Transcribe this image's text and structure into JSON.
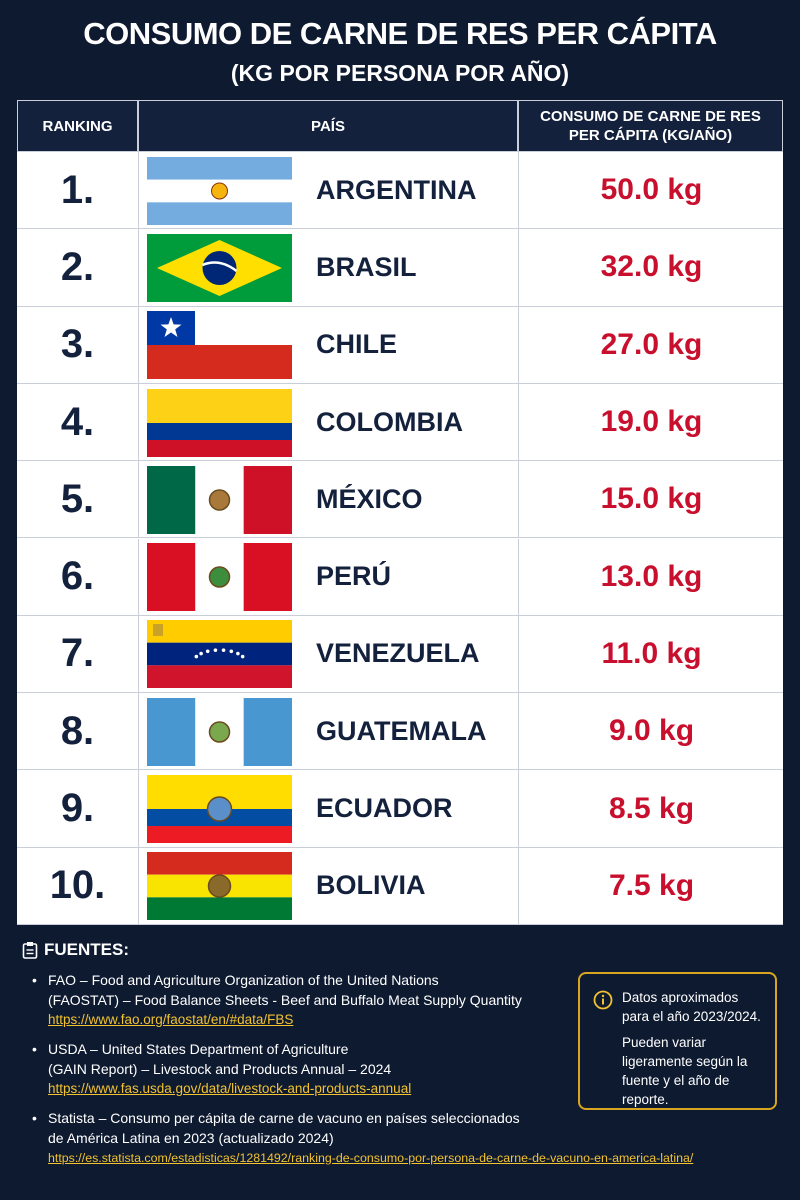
{
  "header": {
    "title": "CONSUMO DE CARNE DE RES PER CÁPITA",
    "subtitle": "(KG POR PERSONA POR AÑO)"
  },
  "table": {
    "columns": [
      "RANKING",
      "PAÍS",
      "CONSUMO DE CARNE DE RES PER CÁPITA (KG/AÑO)"
    ],
    "rows": [
      [
        "1.",
        "ARGENTINA",
        "50.0 kg"
      ],
      [
        "2.",
        "BRASIL",
        "32.0 kg"
      ],
      [
        "3.",
        "CHILE",
        "27.0 kg"
      ],
      [
        "4.",
        "COLOMBIA",
        "19.0 kg"
      ],
      [
        "5.",
        "MÉXICO",
        "15.0 kg"
      ],
      [
        "6.",
        "PERÚ",
        "13.0 kg"
      ],
      [
        "7.",
        "VENEZUELA",
        "11.0 kg"
      ],
      [
        "8.",
        "GUATEMALA",
        "9.0 kg"
      ],
      [
        "9.",
        "ECUADOR",
        "8.5 kg"
      ],
      [
        "10.",
        "BOLIVIA",
        "7.5 kg"
      ]
    ]
  },
  "sources": {
    "title": "FUENTES:",
    "items": [
      {
        "lines": [
          "FAO – Food and Agriculture Organization of the United Nations",
          "(FAOSTAT) – Food Balance Sheets - Beef and Buffalo Meat Supply Quantity"
        ],
        "url": "https://www.fao.org/faostat/en/#data/FBS"
      },
      {
        "lines": [
          "USDA – United States Department of Agriculture",
          "(GAIN Report) – Livestock and Products Annual – 2024"
        ],
        "url": "https://www.fas.usda.gov/data/livestock-and-products-annual"
      },
      {
        "lines": [
          "Statista – Consumo per cápita de carne de vacuno en países seleccionados",
          "de América Latina en 2023 (actualizado 2024)"
        ],
        "url": "https://es.statista.com/estadisticas/1281492/ranking-de-consumo-por-persona-de-carne-de-vacuno-en-america-latina/"
      }
    ]
  },
  "note": {
    "paragraphs": [
      "Datos aproximados para el año 2023/2024.",
      "Pueden variar ligeramente según la fuente y el año de reporte."
    ]
  }
}
